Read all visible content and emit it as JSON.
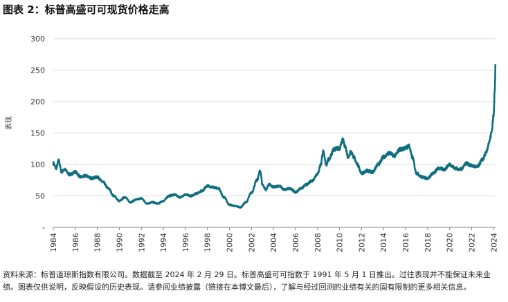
{
  "title": "图表 2：标普高盛可可现货价格走高",
  "footnote": "资料来源：标普道琼斯指数有限公司。数据截至 2024 年 2 月 29 日。标普高盛可可指数于 1991 年 5 月 1 日推出。过往表现并不能保证未来业绩。图表仅供说明，反映假设的历史表现。请参阅业绩披露（链接在本博文最后），了解与经过回测的业绩有关的固有限制的更多相关信息。",
  "colors": {
    "line": "#0f6e80",
    "grid": "#d9d9d9",
    "axis": "#808080"
  },
  "chart_data": {
    "type": "line",
    "title": "图表 2：标普高盛可可现货价格走高",
    "xlabel": "",
    "ylabel": "表现",
    "xlim": [
      1984,
      2024.17
    ],
    "ylim": [
      0,
      300
    ],
    "y_ticks": [
      0,
      50,
      100,
      150,
      200,
      250,
      300
    ],
    "y_tick_labels": [
      "-",
      "50",
      "100",
      "150",
      "200",
      "250",
      "300"
    ],
    "x_ticks": [
      1984,
      1986,
      1988,
      1990,
      1992,
      1994,
      1996,
      1998,
      2000,
      2002,
      2004,
      2006,
      2008,
      2010,
      2012,
      2014,
      2016,
      2018,
      2020,
      2022,
      2024
    ],
    "x_tick_labels": [
      "1984",
      "1986",
      "1988",
      "1990",
      "1992",
      "1994",
      "1996",
      "1998",
      "2000",
      "2002",
      "2004",
      "2006",
      "2008",
      "2010",
      "2012",
      "2014",
      "2016",
      "2018",
      "2020",
      "2022",
      "2024"
    ],
    "grid": "horizontal",
    "series": [
      {
        "name": "标普高盛可可现货",
        "x": [
          1984.0,
          1984.25,
          1984.5,
          1984.75,
          1985.0,
          1985.5,
          1986.0,
          1986.5,
          1987.0,
          1987.5,
          1988.0,
          1988.5,
          1989.0,
          1989.5,
          1990.0,
          1990.5,
          1991.0,
          1991.5,
          1992.0,
          1992.5,
          1993.0,
          1993.5,
          1994.0,
          1994.5,
          1995.0,
          1995.5,
          1996.0,
          1996.5,
          1997.0,
          1997.5,
          1998.0,
          1998.5,
          1999.0,
          1999.5,
          2000.0,
          2000.5,
          2001.0,
          2001.5,
          2002.0,
          2002.5,
          2002.8,
          2003.0,
          2003.3,
          2003.6,
          2004.0,
          2004.5,
          2005.0,
          2005.5,
          2006.0,
          2006.5,
          2007.0,
          2007.5,
          2008.0,
          2008.3,
          2008.5,
          2008.8,
          2009.0,
          2009.5,
          2010.0,
          2010.3,
          2010.5,
          2010.8,
          2011.0,
          2011.3,
          2011.6,
          2012.0,
          2012.5,
          2013.0,
          2013.5,
          2014.0,
          2014.5,
          2015.0,
          2015.5,
          2016.0,
          2016.3,
          2016.6,
          2017.0,
          2017.5,
          2018.0,
          2018.5,
          2019.0,
          2019.5,
          2020.0,
          2020.5,
          2021.0,
          2021.5,
          2022.0,
          2022.5,
          2023.0,
          2023.3,
          2023.6,
          2023.8,
          2024.0,
          2024.1,
          2024.17
        ],
        "values": [
          102,
          94,
          106,
          88,
          92,
          84,
          88,
          80,
          82,
          78,
          80,
          72,
          62,
          50,
          42,
          48,
          40,
          44,
          46,
          38,
          40,
          38,
          42,
          50,
          52,
          48,
          52,
          50,
          54,
          58,
          66,
          64,
          62,
          48,
          36,
          34,
          32,
          40,
          55,
          75,
          90,
          68,
          60,
          68,
          64,
          66,
          60,
          62,
          56,
          62,
          68,
          74,
          85,
          100,
          120,
          100,
          108,
          124,
          126,
          140,
          128,
          110,
          120,
          112,
          100,
          86,
          90,
          88,
          100,
          112,
          118,
          114,
          124,
          126,
          130,
          112,
          86,
          80,
          78,
          86,
          94,
          92,
          100,
          94,
          92,
          102,
          98,
          96,
          108,
          118,
          135,
          150,
          178,
          220,
          258
        ]
      }
    ]
  }
}
